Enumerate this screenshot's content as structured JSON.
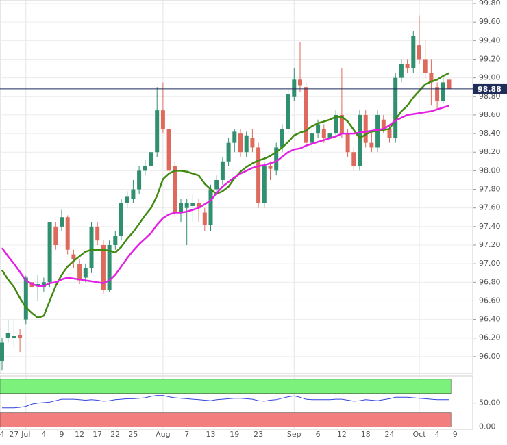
{
  "chart_data": [
    {
      "type": "candlestick",
      "categories": [
        "4",
        null,
        "27",
        null,
        "Jul",
        null,
        null,
        "4",
        null,
        null,
        "9",
        null,
        null,
        "12",
        null,
        null,
        "17",
        null,
        null,
        "22",
        null,
        null,
        "25",
        null,
        null,
        null,
        null,
        "Aug",
        null,
        null,
        null,
        "7",
        null,
        null,
        null,
        "13",
        null,
        null,
        null,
        "19",
        null,
        null,
        null,
        "23",
        null,
        null,
        null,
        null,
        null,
        "Sep",
        null,
        null,
        null,
        "6",
        null,
        null,
        null,
        "12",
        null,
        null,
        null,
        "18",
        null,
        null,
        null,
        "24",
        null,
        null,
        null,
        null,
        "Oct",
        null,
        null,
        "4",
        null,
        null,
        "9"
      ],
      "open": [
        95.95,
        96.2,
        96.2,
        96.23,
        96.4,
        96.8,
        96.77,
        96.75,
        96.8,
        97.4,
        97.4,
        97.5,
        97.1,
        97.0,
        96.85,
        96.95,
        97.4,
        97.2,
        96.72,
        97.2,
        97.3,
        97.65,
        97.7,
        97.8,
        98.0,
        98.05,
        98.2,
        98.65,
        98.45,
        98.05,
        97.55,
        97.6,
        97.62,
        97.65,
        97.55,
        97.42,
        97.8,
        97.9,
        98.1,
        98.3,
        98.4,
        98.2,
        98.35,
        98.25,
        97.65,
        98.05,
        98.0,
        98.25,
        98.45,
        98.8,
        98.98,
        98.9,
        98.3,
        98.4,
        98.45,
        98.35,
        98.4,
        98.6,
        98.4,
        98.2,
        98.05,
        98.6,
        98.3,
        98.25,
        98.55,
        98.45,
        98.35,
        99.0,
        99.15,
        99.1,
        99.35,
        99.2,
        99.05,
        98.9,
        98.75,
        98.98,
        null
      ],
      "high": [
        96.2,
        96.4,
        96.4,
        96.3,
        96.87,
        96.85,
        96.88,
        96.85,
        97.45,
        97.45,
        97.58,
        97.52,
        97.15,
        97.05,
        97.0,
        97.45,
        97.45,
        97.25,
        97.25,
        97.35,
        97.7,
        97.78,
        97.9,
        98.05,
        98.12,
        98.25,
        98.9,
        98.95,
        98.5,
        98.1,
        97.7,
        97.7,
        97.75,
        97.7,
        97.6,
        97.85,
        97.95,
        98.15,
        98.35,
        98.45,
        98.45,
        98.42,
        98.45,
        98.3,
        98.1,
        98.1,
        98.3,
        98.5,
        98.88,
        99.1,
        99.38,
        98.95,
        98.45,
        98.55,
        98.5,
        98.45,
        98.65,
        99.1,
        98.45,
        98.25,
        98.65,
        98.65,
        98.4,
        98.65,
        98.6,
        98.5,
        99.05,
        99.2,
        99.2,
        99.5,
        99.67,
        99.4,
        99.2,
        98.95,
        99.0,
        99.0,
        null
      ],
      "low": [
        95.85,
        96.15,
        96.1,
        96.05,
        96.35,
        96.7,
        96.6,
        96.7,
        96.75,
        97.15,
        97.35,
        97.1,
        96.95,
        96.78,
        96.8,
        96.9,
        97.2,
        96.68,
        96.7,
        97.15,
        97.25,
        97.6,
        97.65,
        97.75,
        97.95,
        98.0,
        98.15,
        98.4,
        97.95,
        97.5,
        97.45,
        97.2,
        97.45,
        97.45,
        97.35,
        97.35,
        97.75,
        97.85,
        98.05,
        98.2,
        98.15,
        98.15,
        98.2,
        97.6,
        97.6,
        97.9,
        97.95,
        98.2,
        98.4,
        98.75,
        98.85,
        98.25,
        98.2,
        98.35,
        98.3,
        98.3,
        98.35,
        98.35,
        98.15,
        98.0,
        98.0,
        98.25,
        98.2,
        98.2,
        98.4,
        98.3,
        98.3,
        98.95,
        99.05,
        99.05,
        99.15,
        99.0,
        98.7,
        98.65,
        98.72,
        98.85,
        null
      ],
      "close": [
        96.15,
        96.25,
        96.22,
        96.2,
        96.85,
        96.75,
        96.78,
        96.8,
        97.45,
        97.2,
        97.5,
        97.15,
        97.05,
        96.82,
        96.95,
        97.4,
        97.25,
        96.72,
        97.2,
        97.3,
        97.65,
        97.72,
        97.8,
        98.0,
        98.05,
        98.2,
        98.65,
        98.45,
        98.0,
        97.55,
        97.65,
        97.65,
        97.65,
        97.6,
        97.42,
        97.8,
        97.9,
        98.1,
        98.3,
        98.42,
        98.2,
        98.38,
        98.25,
        97.65,
        98.05,
        98.02,
        98.25,
        98.45,
        98.82,
        98.98,
        98.92,
        98.3,
        98.4,
        98.5,
        98.35,
        98.4,
        98.6,
        98.4,
        98.2,
        98.05,
        98.6,
        98.3,
        98.25,
        98.6,
        98.45,
        98.35,
        99.0,
        99.15,
        99.1,
        99.45,
        99.2,
        99.05,
        98.95,
        98.75,
        98.95,
        98.88,
        null
      ],
      "up_color": "#2f8f6e",
      "down_color": "#dd6a5c",
      "series": [
        {
          "color": "#3f8a10",
          "values": [
            96.93,
            96.83,
            96.75,
            96.63,
            96.53,
            96.47,
            96.42,
            96.44,
            96.6,
            96.76,
            96.88,
            96.97,
            97.03,
            97.08,
            97.13,
            97.15,
            97.15,
            97.15,
            97.14,
            97.12,
            97.18,
            97.27,
            97.34,
            97.43,
            97.52,
            97.6,
            97.73,
            97.91,
            97.97,
            98.0,
            98.0,
            97.99,
            97.97,
            97.95,
            97.86,
            97.8,
            97.75,
            97.78,
            97.83,
            97.92,
            97.99,
            98.04,
            98.08,
            98.11,
            98.13,
            98.16,
            98.2,
            98.25,
            98.31,
            98.38,
            98.41,
            98.43,
            98.48,
            98.51,
            98.53,
            98.55,
            98.58,
            98.58,
            98.53,
            98.44,
            98.35,
            98.39,
            98.42,
            98.43,
            98.44,
            98.45,
            98.55,
            98.64,
            98.7,
            98.79,
            98.86,
            98.93,
            98.96,
            98.98,
            99.02,
            99.05,
            null
          ]
        },
        {
          "color": "#e41fe4",
          "values": [
            97.17,
            97.08,
            97.0,
            96.91,
            96.82,
            96.78,
            96.76,
            96.76,
            96.79,
            96.8,
            96.83,
            96.85,
            96.84,
            96.83,
            96.82,
            96.81,
            96.8,
            96.79,
            96.82,
            96.88,
            96.97,
            97.06,
            97.14,
            97.21,
            97.27,
            97.33,
            97.42,
            97.49,
            97.53,
            97.55,
            97.55,
            97.56,
            97.58,
            97.6,
            97.64,
            97.68,
            97.76,
            97.83,
            97.88,
            97.93,
            97.97,
            98.0,
            98.03,
            98.05,
            98.06,
            98.08,
            98.1,
            98.15,
            98.2,
            98.23,
            98.24,
            98.27,
            98.29,
            98.31,
            98.33,
            98.35,
            98.37,
            98.4,
            98.4,
            98.4,
            98.41,
            98.42,
            98.43,
            98.44,
            98.45,
            98.49,
            98.54,
            98.57,
            98.6,
            98.61,
            98.62,
            98.63,
            98.64,
            98.66,
            98.68,
            98.7,
            null
          ]
        }
      ],
      "last_price": 98.88,
      "last_price_color": "#1f2d5a",
      "ylim": [
        95.815,
        99.837
      ],
      "yticks": [
        {
          "value": 96.0,
          "label": "96.00"
        },
        {
          "value": 96.2,
          "label": "96.20"
        },
        {
          "value": 96.4,
          "label": "96.40"
        },
        {
          "value": 96.6,
          "label": "96.60"
        },
        {
          "value": 96.8,
          "label": "96.80"
        },
        {
          "value": 97.0,
          "label": "97.00"
        },
        {
          "value": 97.2,
          "label": "97.20"
        },
        {
          "value": 97.4,
          "label": "97.40"
        },
        {
          "value": 97.6,
          "label": "97.60"
        },
        {
          "value": 97.8,
          "label": "97.80"
        },
        {
          "value": 98.0,
          "label": "98.00"
        },
        {
          "value": 98.2,
          "label": "98.20"
        },
        {
          "value": 98.4,
          "label": "98.40"
        },
        {
          "value": 98.6,
          "label": "98.60"
        },
        {
          "value": 98.8,
          "label": "98.80"
        },
        {
          "value": 99.0,
          "label": "99.00"
        },
        {
          "value": 99.2,
          "label": "99.20"
        },
        {
          "value": 99.4,
          "label": "99.40"
        },
        {
          "value": 99.6,
          "label": "99.60"
        },
        {
          "value": 99.8,
          "label": "99.80"
        }
      ],
      "grid": true
    },
    {
      "type": "line",
      "color": "#3344dd",
      "values": [
        40,
        40,
        40,
        41,
        43,
        48,
        50,
        51,
        52,
        55,
        58,
        58,
        58,
        57,
        56,
        57,
        56,
        54,
        55,
        57,
        58,
        59,
        59,
        60,
        61,
        64,
        66,
        66,
        63,
        61,
        60,
        59,
        58,
        57,
        56,
        55,
        57,
        58,
        59,
        60,
        60,
        59,
        58,
        55,
        54,
        56,
        57,
        60,
        63,
        65,
        62,
        58,
        57,
        57,
        57,
        57,
        58,
        58,
        56,
        54,
        55,
        57,
        56,
        55,
        57,
        59,
        62,
        62,
        62,
        61,
        60,
        59,
        58,
        57,
        57,
        57,
        null
      ],
      "bands": [
        {
          "from": 70,
          "to": 100,
          "color": "#7cf27c"
        },
        {
          "from": 0,
          "to": 30,
          "color": "#f27e7e"
        }
      ],
      "ylim": [
        -5,
        107
      ],
      "yticks": [
        {
          "value": 50,
          "label": "50.00"
        },
        {
          "value": 0,
          "label": "0.00"
        }
      ]
    }
  ]
}
